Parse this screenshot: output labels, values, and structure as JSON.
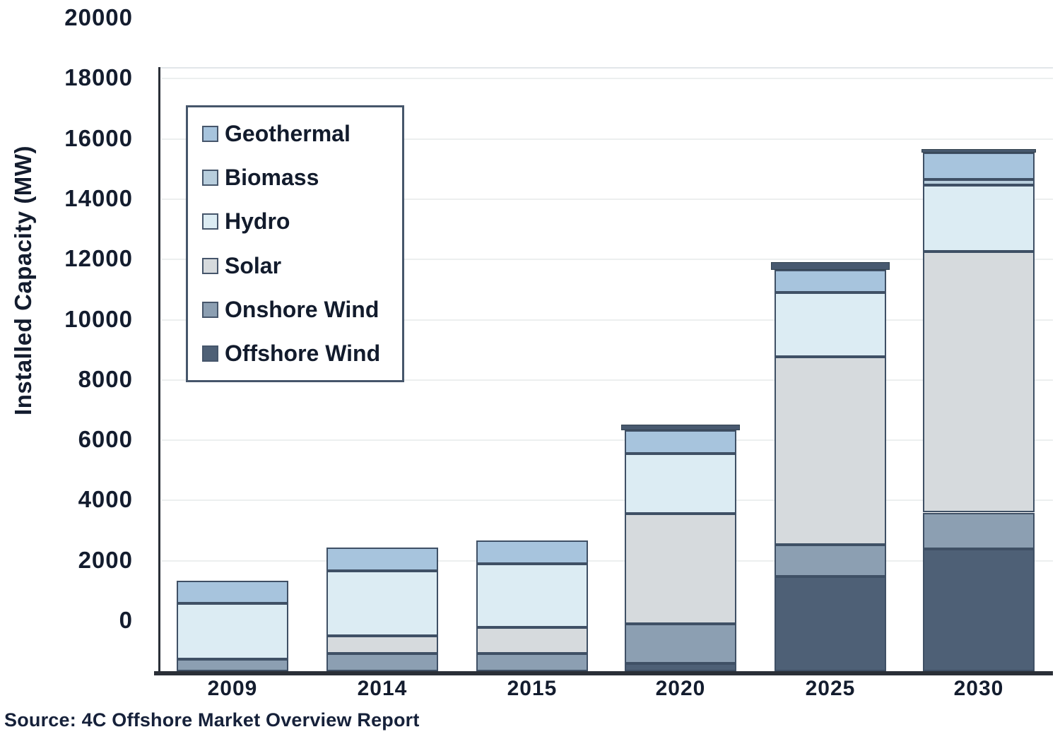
{
  "y_axis": {
    "title": "Installed Capacity (MW)",
    "ticks": [
      0,
      2000,
      4000,
      6000,
      8000,
      10000,
      12000,
      14000,
      16000,
      18000,
      20000
    ]
  },
  "x_axis": {
    "categories": [
      "2009",
      "2014",
      "2015",
      "2020",
      "2025",
      "2030"
    ]
  },
  "legend": {
    "items": [
      {
        "label": "Geothermal",
        "color": "#a7c4dd"
      },
      {
        "label": "Biomass",
        "color": "#b8cedd"
      },
      {
        "label": "Hydro",
        "color": "#dcecf3"
      },
      {
        "label": "Solar",
        "color": "#d6dadd"
      },
      {
        "label": "Onshore Wind",
        "color": "#8c9fb2"
      },
      {
        "label": "Offshore Wind",
        "color": "#4e6076"
      }
    ]
  },
  "source_note": "Source: 4C Offshore Market Overview Report",
  "colors": {
    "axis": "#2a2f37",
    "grid": "#ecefef",
    "segment_border": "#3f5065",
    "total_cap": "#48596f",
    "text": "#131c2e"
  },
  "chart_data": {
    "type": "bar",
    "stacked": true,
    "title": "",
    "xlabel": "",
    "ylabel": "Installed Capacity (MW)",
    "categories": [
      "2009",
      "2014",
      "2015",
      "2020",
      "2025",
      "2030"
    ],
    "series": [
      {
        "name": "Offshore Wind",
        "color": "#4e6076",
        "values": [
          0,
          0,
          0,
          260,
          3140,
          4060
        ]
      },
      {
        "name": "Onshore Wind",
        "color": "#8c9fb2",
        "values": [
          400,
          590,
          590,
          1310,
          1060,
          1200
        ]
      },
      {
        "name": "Solar",
        "color": "#d6dadd",
        "values": [
          0,
          590,
          870,
          3660,
          6240,
          8660
        ]
      },
      {
        "name": "Hydro",
        "color": "#dcecf3",
        "values": [
          1850,
          2160,
          2110,
          1990,
          2140,
          2210
        ]
      },
      {
        "name": "Biomass",
        "color": "#b8cedd",
        "values": [
          0,
          0,
          0,
          0,
          0,
          190
        ]
      },
      {
        "name": "Geothermal",
        "color": "#a7c4dd",
        "values": [
          750,
          775,
          775,
          775,
          750,
          890
        ]
      }
    ],
    "total_cap_markers": [
      0,
      0,
      0,
      190,
      260,
      120
    ],
    "bar_base_mw": -1690,
    "approx_bar_top_mw": [
      1310,
      2425,
      2655,
      6495,
      11900,
      15640
    ],
    "ylim": [
      -1690,
      18400
    ],
    "yticks": [
      0,
      2000,
      4000,
      6000,
      8000,
      10000,
      12000,
      14000,
      16000,
      18000,
      20000
    ],
    "grid": "horizontal-faint",
    "legend_position": "upper-left-inside"
  }
}
